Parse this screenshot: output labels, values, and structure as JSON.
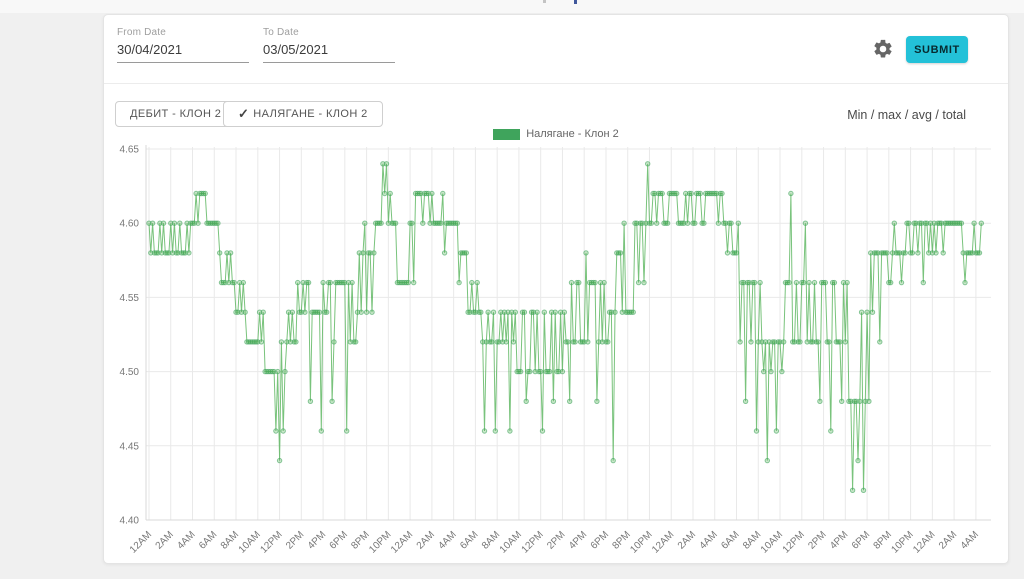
{
  "page": {
    "artifacts": [
      "top-clipped-text-fragment-gray",
      "top-clipped-text-fragment-blue"
    ]
  },
  "toolbar": {
    "from_date": {
      "label": "From Date",
      "value": "30/04/2021"
    },
    "to_date": {
      "label": "To Date",
      "value": "03/05/2021"
    },
    "submit_label": "SUBMIT",
    "gear_icon": "settings-gear",
    "submit_color": "#23c1d8"
  },
  "filters": {
    "check_glyph": "✓",
    "buttons": [
      {
        "label": "ДЕБИТ - КЛОН 2",
        "checked": false
      },
      {
        "label": "НАЛЯГАНЕ - КЛОН 2",
        "checked": true
      }
    ],
    "stats_link": "Min / max / avg / total"
  },
  "chart_data": {
    "type": "line",
    "title": "",
    "xlabel": "",
    "ylabel": "",
    "legend": [
      {
        "label": "Налягане - Клон 2",
        "color": "#3fa45c"
      }
    ],
    "legend_position": "top-center",
    "grid": true,
    "marker": "circle",
    "ylim": [
      4.4,
      4.65
    ],
    "y_ticks": [
      "4.65",
      "4.60",
      "4.55",
      "4.50",
      "4.45",
      "4.40"
    ],
    "x_tick_interval_hours": 2,
    "x_ticks": [
      "12AM",
      "2AM",
      "4AM",
      "6AM",
      "8AM",
      "10AM",
      "12PM",
      "2PM",
      "4PM",
      "6PM",
      "8PM",
      "10PM",
      "12AM",
      "2AM",
      "4AM",
      "6AM",
      "8AM",
      "10AM",
      "12PM",
      "2PM",
      "4PM",
      "6PM",
      "8PM",
      "10PM",
      "12AM",
      "2AM",
      "4AM",
      "6AM",
      "8AM",
      "10AM",
      "12PM",
      "2PM",
      "4PM",
      "6PM",
      "8PM",
      "10PM",
      "12AM",
      "2AM",
      "4AM"
    ],
    "time_span": "30/04/2021 12AM – 03/05/2021 ~5AM, readings every ~10 min",
    "value_resolution": 0.02,
    "sample_interval_minutes": 10,
    "series_segments_comment": "[startHour, endHour, lowLevel, highLevel, shareOfHighPoints] — signal oscillates between the two adjacent levels",
    "series_segments": [
      [
        0,
        3,
        4.58,
        4.6,
        0.5
      ],
      [
        3,
        4.2,
        4.58,
        4.6,
        0.8
      ],
      [
        4.2,
        5.6,
        4.6,
        4.62,
        0.55
      ],
      [
        5.6,
        6.4,
        4.58,
        4.6,
        0.7
      ],
      [
        6.4,
        8,
        4.56,
        4.58,
        0.5
      ],
      [
        8,
        8.8,
        4.54,
        4.56,
        0.55
      ],
      [
        8.8,
        10.6,
        4.52,
        4.54,
        0.5
      ],
      [
        10.6,
        12.6,
        4.5,
        4.52,
        0.5
      ],
      [
        12.6,
        13.6,
        4.52,
        4.54,
        0.6
      ],
      [
        13.6,
        16.6,
        4.54,
        4.56,
        0.5
      ],
      [
        16.6,
        19,
        4.52,
        4.56,
        0.5
      ],
      [
        19,
        20.6,
        4.54,
        4.58,
        0.55
      ],
      [
        20.6,
        21.2,
        4.58,
        4.6,
        0.6
      ],
      [
        21.2,
        22.4,
        4.6,
        4.62,
        0.6
      ],
      [
        22.4,
        24.4,
        4.56,
        4.6,
        0.5
      ],
      [
        24.4,
        26.2,
        4.6,
        4.62,
        0.6
      ],
      [
        26.2,
        28.4,
        4.58,
        4.6,
        0.75
      ],
      [
        28.4,
        29.2,
        4.56,
        4.58,
        0.5
      ],
      [
        29.2,
        30.2,
        4.54,
        4.56,
        0.5
      ],
      [
        30.2,
        33.8,
        4.52,
        4.54,
        0.5
      ],
      [
        33.8,
        38.2,
        4.5,
        4.54,
        0.5
      ],
      [
        38.2,
        42.2,
        4.52,
        4.56,
        0.5
      ],
      [
        42.2,
        44.6,
        4.54,
        4.58,
        0.5
      ],
      [
        44.6,
        46.2,
        4.56,
        4.6,
        0.6
      ],
      [
        46.2,
        52.8,
        4.6,
        4.62,
        0.6
      ],
      [
        52.8,
        54.2,
        4.58,
        4.6,
        0.6
      ],
      [
        54.2,
        56.2,
        4.52,
        4.56,
        0.5
      ],
      [
        56.2,
        58.2,
        4.5,
        4.52,
        0.5
      ],
      [
        58.2,
        60.6,
        4.52,
        4.56,
        0.5
      ],
      [
        60.6,
        64.2,
        4.52,
        4.56,
        0.5
      ],
      [
        64.2,
        66.2,
        4.48,
        4.54,
        0.5
      ],
      [
        66.2,
        67.6,
        4.54,
        4.58,
        0.5
      ],
      [
        67.6,
        69.6,
        4.56,
        4.58,
        0.6
      ],
      [
        69.6,
        73,
        4.58,
        4.6,
        0.6
      ],
      [
        73,
        74.5,
        4.58,
        4.6,
        0.8
      ],
      [
        74.5,
        76.6,
        4.58,
        4.6,
        0.5
      ]
    ],
    "spikes_comment": "[hour, value] — isolated extreme readings (thin spikes/dips)",
    "spikes": [
      [
        11.6,
        4.46
      ],
      [
        12,
        4.44
      ],
      [
        12.4,
        4.46
      ],
      [
        14.9,
        4.48
      ],
      [
        15.9,
        4.46
      ],
      [
        16.9,
        4.48
      ],
      [
        18.1,
        4.46
      ],
      [
        19.9,
        4.6
      ],
      [
        21.5,
        4.64
      ],
      [
        21.8,
        4.64
      ],
      [
        23,
        4.56
      ],
      [
        27,
        4.62
      ],
      [
        30.9,
        4.46
      ],
      [
        31.9,
        4.46
      ],
      [
        33.1,
        4.46
      ],
      [
        34.6,
        4.48
      ],
      [
        36.1,
        4.46
      ],
      [
        37.1,
        4.48
      ],
      [
        38.6,
        4.48
      ],
      [
        40.1,
        4.58
      ],
      [
        41.1,
        4.48
      ],
      [
        42.6,
        4.44
      ],
      [
        43.6,
        4.6
      ],
      [
        45.9,
        4.64
      ],
      [
        54.9,
        4.48
      ],
      [
        55.9,
        4.46
      ],
      [
        56.9,
        4.44
      ],
      [
        57.7,
        4.46
      ],
      [
        59,
        4.62
      ],
      [
        60.3,
        4.6
      ],
      [
        61.6,
        4.48
      ],
      [
        62.6,
        4.46
      ],
      [
        63.6,
        4.48
      ],
      [
        64.6,
        4.42
      ],
      [
        65.1,
        4.44
      ],
      [
        65.7,
        4.42
      ],
      [
        67.1,
        4.52
      ],
      [
        68.5,
        4.6
      ],
      [
        71.1,
        4.56
      ],
      [
        75,
        4.56
      ]
    ],
    "colors": {
      "line": "#4caf50",
      "marker_fill": "rgba(76,175,80,0.30)",
      "marker_stroke": "#3fa45c",
      "grid": "#e9e9e9",
      "axis": "#d9d9d9",
      "tick_text": "#777777"
    }
  }
}
